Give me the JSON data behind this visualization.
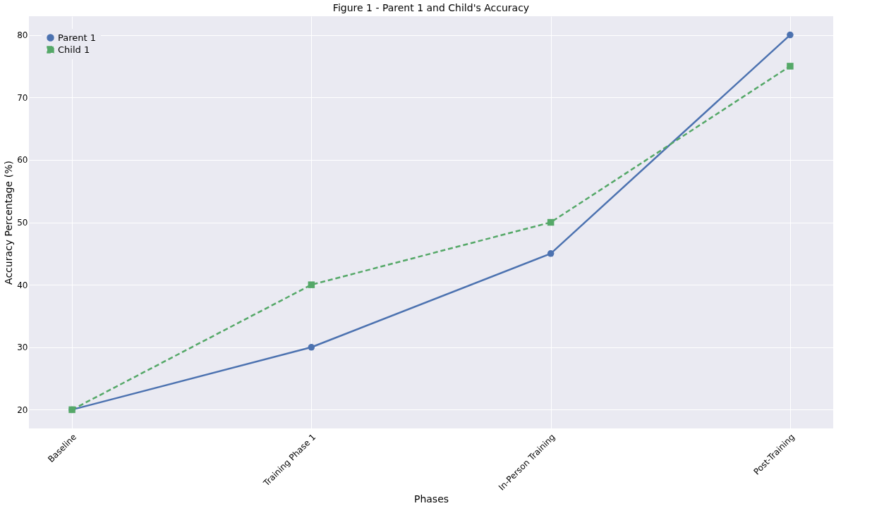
{
  "chart_data": {
    "type": "line",
    "title": "Figure 1 - Parent 1 and Child's Accuracy",
    "xlabel": "Phases",
    "ylabel": "Accuracy Percentage (%)",
    "categories": [
      "Baseline",
      "Training Phase 1",
      "In-Person Training",
      "Post-Training"
    ],
    "series": [
      {
        "name": "Parent 1",
        "color": "#4c72b0",
        "values": [
          20,
          30,
          45,
          80
        ],
        "marker": "circle",
        "line_style": "solid"
      },
      {
        "name": "Child 1",
        "color": "#55a868",
        "values": [
          20,
          40,
          50,
          75
        ],
        "marker": "square",
        "line_style": "dashed"
      }
    ],
    "ylim": [
      17,
      83
    ],
    "yticks": [
      20,
      30,
      40,
      50,
      60,
      70,
      80
    ],
    "grid": true,
    "legend": "top left"
  }
}
